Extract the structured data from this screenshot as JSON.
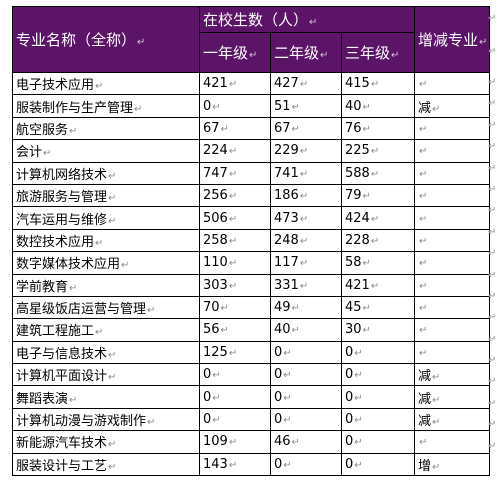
{
  "table": {
    "header": {
      "major_name": "专业名称（全称）",
      "enrollment_group": "在校生数（人）",
      "change_major": "增减专业",
      "grades": [
        "一年级",
        "二年级",
        "三年级"
      ]
    },
    "rows": [
      {
        "name": "电子技术应用",
        "g1": "421",
        "g2": "427",
        "g3": "415",
        "change": ""
      },
      {
        "name": "服装制作与生产管理",
        "g1": "0",
        "g2": "51",
        "g3": "40",
        "change": "减"
      },
      {
        "name": "航空服务",
        "g1": "67",
        "g2": "67",
        "g3": "76",
        "change": ""
      },
      {
        "name": "会计",
        "g1": "224",
        "g2": "229",
        "g3": "225",
        "change": ""
      },
      {
        "name": "计算机网络技术",
        "g1": "747",
        "g2": "741",
        "g3": "588",
        "change": ""
      },
      {
        "name": "旅游服务与管理",
        "g1": "256",
        "g2": "186",
        "g3": "79",
        "change": ""
      },
      {
        "name": "汽车运用与维修",
        "g1": "506",
        "g2": "473",
        "g3": "424",
        "change": ""
      },
      {
        "name": "数控技术应用",
        "g1": "258",
        "g2": "248",
        "g3": "228",
        "change": ""
      },
      {
        "name": "数字媒体技术应用",
        "g1": "110",
        "g2": "117",
        "g3": "58",
        "change": ""
      },
      {
        "name": "学前教育",
        "g1": "303",
        "g2": "331",
        "g3": "421",
        "change": ""
      },
      {
        "name": "高星级饭店运营与管理",
        "g1": "70",
        "g2": "49",
        "g3": "45",
        "change": ""
      },
      {
        "name": "建筑工程施工",
        "g1": "56",
        "g2": "40",
        "g3": "30",
        "change": ""
      },
      {
        "name": "电子与信息技术",
        "g1": "125",
        "g2": "0",
        "g3": "0",
        "change": ""
      },
      {
        "name": "计算机平面设计",
        "g1": "0",
        "g2": "0",
        "g3": "0",
        "change": "减"
      },
      {
        "name": "舞蹈表演",
        "g1": "0",
        "g2": "0",
        "g3": "0",
        "change": "减"
      },
      {
        "name": "计算机动漫与游戏制作",
        "g1": "0",
        "g2": "0",
        "g3": "0",
        "change": "减"
      },
      {
        "name": "新能源汽车技术",
        "g1": "109",
        "g2": "46",
        "g3": "0",
        "change": ""
      },
      {
        "name": "服装设计与工艺",
        "g1": "143",
        "g2": "0",
        "g3": "0",
        "change": "增"
      }
    ]
  },
  "marks": {
    "paragraph_mark": "↵",
    "header_color": "#5c1468"
  }
}
